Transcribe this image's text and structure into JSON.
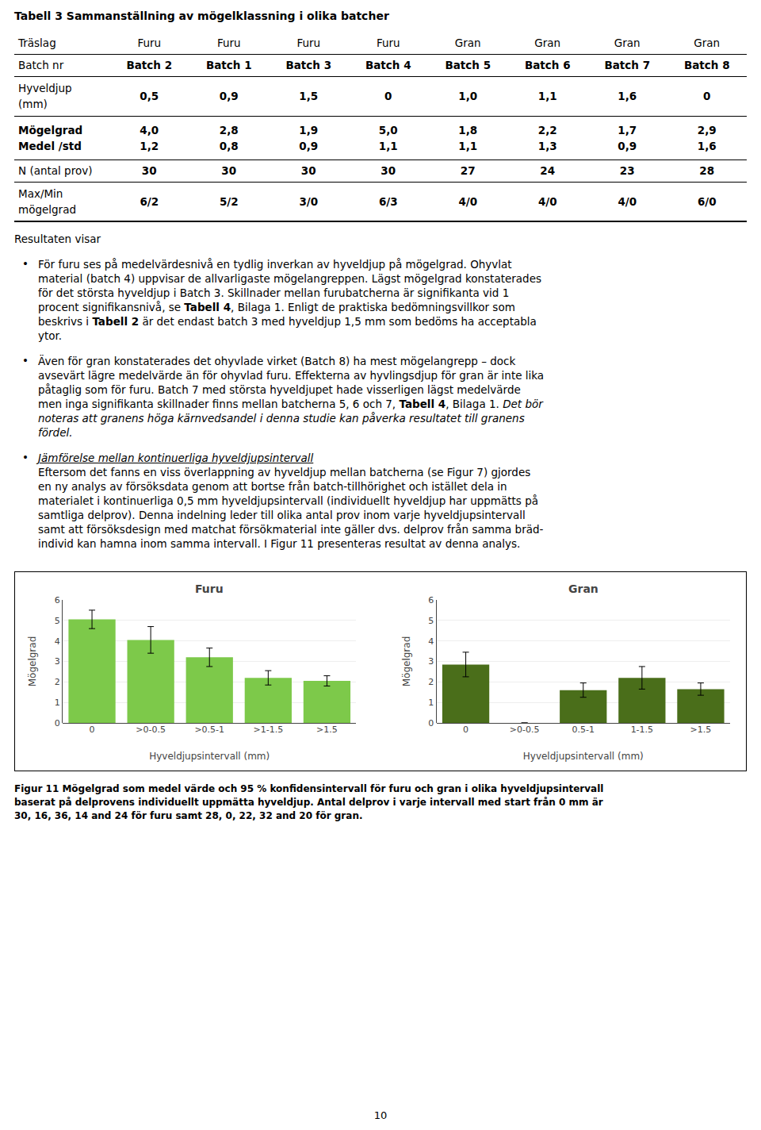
{
  "page": {
    "title": "Tabell 3 Sammanställning av mögelklassning i olika batcher",
    "table": {
      "rows": [
        {
          "label": [
            "Träslag"
          ],
          "label_style": "normal",
          "cell_style": "normal",
          "cells": [
            [
              "Furu"
            ],
            [
              "Furu"
            ],
            [
              "Furu"
            ],
            [
              "Furu"
            ],
            [
              "Gran"
            ],
            [
              "Gran"
            ],
            [
              "Gran"
            ],
            [
              "Gran"
            ]
          ]
        },
        {
          "label": [
            "Batch nr"
          ],
          "label_style": "normal",
          "cell_style": "bold",
          "cells": [
            [
              "Batch 2"
            ],
            [
              "Batch 1"
            ],
            [
              "Batch 3"
            ],
            [
              "Batch 4"
            ],
            [
              "Batch 5"
            ],
            [
              "Batch 6"
            ],
            [
              "Batch 7"
            ],
            [
              "Batch 8"
            ]
          ]
        },
        {
          "label": [
            "Hyveldjup",
            "(mm)"
          ],
          "label_style": "normal",
          "cell_style": "bold",
          "cells": [
            [
              "0,5"
            ],
            [
              "0,9"
            ],
            [
              "1,5"
            ],
            [
              "0"
            ],
            [
              "1,0"
            ],
            [
              "1,1"
            ],
            [
              "1,6"
            ],
            [
              "0"
            ]
          ]
        },
        {
          "label": [
            "Mögelgrad",
            "Medel /std"
          ],
          "label_style": "bold",
          "cell_style": "bold",
          "cells": [
            [
              "4,0",
              "1,2"
            ],
            [
              "2,8",
              "0,8"
            ],
            [
              "1,9",
              "0,9"
            ],
            [
              "5,0",
              "1,1"
            ],
            [
              "1,8",
              "1,1"
            ],
            [
              "2,2",
              "1,3"
            ],
            [
              "1,7",
              "0,9"
            ],
            [
              "2,9",
              "1,6"
            ]
          ]
        },
        {
          "label": [
            "N (antal prov)"
          ],
          "label_style": "normal",
          "cell_style": "bold",
          "cells": [
            [
              "30"
            ],
            [
              "30"
            ],
            [
              "30"
            ],
            [
              "30"
            ],
            [
              "27"
            ],
            [
              "24"
            ],
            [
              "23"
            ],
            [
              "28"
            ]
          ]
        },
        {
          "label": [
            "Max/Min",
            "mögelgrad"
          ],
          "label_style": "normal",
          "cell_style": "bold",
          "cells": [
            [
              "6/2"
            ],
            [
              "5/2"
            ],
            [
              "3/0"
            ],
            [
              "6/3"
            ],
            [
              "4/0"
            ],
            [
              "4/0"
            ],
            [
              "4/0"
            ],
            [
              "6/0"
            ]
          ]
        }
      ]
    },
    "paragraphs": [
      {
        "lines": [
          "Resultaten visar"
        ]
      },
      {
        "bullet": "•",
        "lines": [
          "För furu ses på medelvärdesnivå en tydlig inverkan av hyveldjup på mögelgrad. Ohyvlat",
          "material (batch 4) uppvisar de allvarligaste mögelangreppen. Lägst mögelgrad konstaterades",
          "för det största hyveldjup i Batch 3. Skillnader mellan furubatcherna är signifikanta vid 1",
          [
            {
              "text": "procent signifikansnivå, se "
            },
            {
              "text": "Tabell 4",
              "style": "bold"
            },
            {
              "text": ", Bilaga 1. Enligt de praktiska bedömningsvillkor som"
            }
          ],
          [
            {
              "text": "beskrivs i "
            },
            {
              "text": "Tabell 2",
              "style": "bold"
            },
            {
              "text": " är det endast batch 3 med hyveldjup 1,5 mm som bedöms ha acceptabla"
            }
          ],
          "ytor."
        ]
      },
      {
        "bullet": "•",
        "lines": [
          "Även för gran konstaterades det ohyvlade virket (Batch 8) ha mest mögelangrepp – dock",
          "avsevärt lägre medelvärde än för ohyvlad furu. Effekterna av hyvlingsdjup för gran är inte lika",
          "påtaglig som för furu. Batch 7 med största hyveldjupet hade visserligen lägst medelvärde",
          [
            {
              "text": "men inga signifikanta skillnader finns mellan batcherna 5, 6 och 7, "
            },
            {
              "text": "Tabell 4",
              "style": "bold"
            },
            {
              "text": ", Bilaga 1. "
            },
            {
              "text": "Det bör",
              "style": "italic"
            }
          ],
          [
            {
              "text": "noteras att granens höga kärnvedsandel i denna studie kan påverka resultatet till granens",
              "style": "italic"
            }
          ],
          [
            {
              "text": "fördel.",
              "style": "italic"
            }
          ]
        ]
      },
      {
        "bullet": "•",
        "lines": [
          [
            {
              "text": "Jämförelse mellan kontinuerliga hyveldjupsintervall",
              "style": "italic_underline"
            }
          ],
          "Eftersom det fanns en viss överlappning av hyveldjup mellan batcherna (se Figur 7) gjordes",
          "en ny analys av försöksdata genom att bortse från batch-tillhörighet och istället dela in",
          "materialet i kontinuerliga 0,5 mm hyveldjupsintervall (individuellt hyveldjup har uppmätts på",
          "samtliga delprov). Denna indelning leder till olika antal prov inom varje hyveldjupsintervall",
          "samt att försöksdesign med matchat försökmaterial inte gäller dvs. delprov från samma bräd-",
          "individ kan hamna inom samma intervall. I Figur 11 presenteras resultat av denna analys."
        ]
      }
    ],
    "caption": [
      "Figur 11 Mögelgrad som medel värde och 95 % konfidensintervall för furu och gran i olika hyveldjupsintervall",
      "baserat på delprovens individuellt uppmätta hyveldjup. Antal delprov i varje intervall med start från 0 mm är",
      "30, 16, 36, 14 and 24 för furu samt 28, 0, 22, 32 and 20 för gran."
    ],
    "page_number": "10"
  },
  "chart_data": [
    {
      "type": "bar",
      "title": "Furu",
      "categories": [
        "0",
        ">0-0.5",
        ">0.5-1",
        ">1-1.5",
        ">1.5"
      ],
      "values": [
        5.05,
        4.05,
        3.2,
        2.2,
        2.05
      ],
      "errors": [
        0.45,
        0.65,
        0.45,
        0.35,
        0.25
      ],
      "color": "#7DC94A",
      "xlabel": "Hyveldjupsintervall (mm)",
      "ylabel": "Mögelgrad",
      "ylim": [
        0,
        6
      ],
      "yticks": [
        0,
        1,
        2,
        3,
        4,
        5,
        6
      ],
      "grid": true
    },
    {
      "type": "bar",
      "title": "Gran",
      "categories": [
        "0",
        ">0-0.5",
        "0.5-1",
        "1-1.5",
        ">1.5"
      ],
      "values": [
        2.85,
        0,
        1.6,
        2.2,
        1.65
      ],
      "errors": [
        0.6,
        0,
        0.35,
        0.55,
        0.3
      ],
      "color": "#4A6E1A",
      "xlabel": "Hyveldjupsintervall (mm)",
      "ylabel": "Mögelgrad",
      "ylim": [
        0,
        6
      ],
      "yticks": [
        0,
        1,
        2,
        3,
        4,
        5,
        6
      ],
      "grid": true
    }
  ]
}
